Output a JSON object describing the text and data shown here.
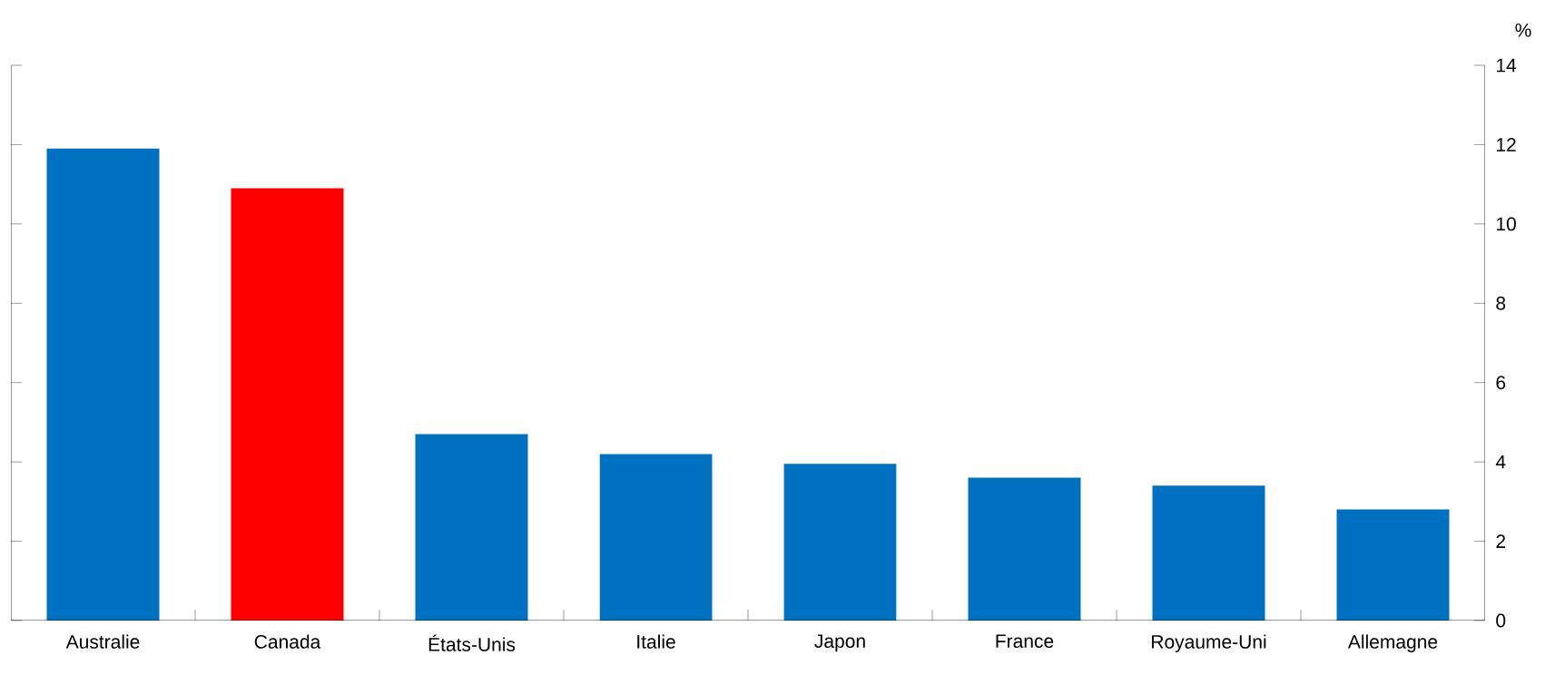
{
  "chart_data": {
    "type": "bar",
    "ylabel": "%",
    "categories": [
      "Australie",
      "Canada",
      "États-Unis",
      "Italie",
      "Japon",
      "France",
      "Royaume-Uni",
      "Allemagne"
    ],
    "values": [
      11.9,
      10.9,
      4.7,
      4.2,
      3.95,
      3.6,
      3.4,
      2.8
    ],
    "colors": [
      "#0070c0",
      "#ff0000",
      "#0070c0",
      "#0070c0",
      "#0070c0",
      "#0070c0",
      "#0070c0",
      "#0070c0"
    ],
    "ylim": [
      0,
      14
    ],
    "yticks": [
      0,
      2,
      4,
      6,
      8,
      10,
      12,
      14
    ],
    "grid": false
  }
}
